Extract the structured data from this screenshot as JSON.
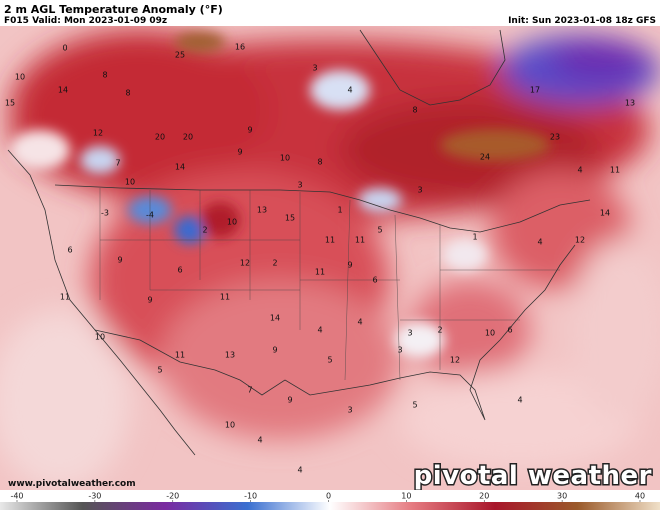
{
  "header": {
    "title": "2 m AGL Temperature Anomaly (°F)",
    "valid": "F015 Valid: Mon 2023-01-09 09z",
    "init": "Init: Sun 2023-01-08 18z GFS"
  },
  "footer": {
    "website": "www.pivotalweather.com",
    "logo": "pivotal weather"
  },
  "colorbar": {
    "range": [
      -40,
      40
    ],
    "ticks": [
      -40,
      -30,
      -20,
      -10,
      0,
      10,
      20,
      30,
      40
    ]
  },
  "map_labels": [
    0,
    10,
    14,
    8,
    8,
    16,
    25,
    3,
    4,
    8,
    17,
    13,
    23,
    24,
    15,
    12,
    20,
    20,
    9,
    7,
    10,
    14,
    9,
    10,
    8,
    3,
    1,
    3,
    -3,
    -4,
    2,
    10,
    13,
    15,
    11,
    11,
    5,
    6,
    9,
    6,
    12,
    2,
    11,
    9,
    6,
    1,
    4,
    12,
    14,
    11,
    9,
    11,
    14,
    4,
    4,
    3,
    2,
    10,
    6,
    10,
    11,
    13,
    9,
    5,
    3,
    12,
    5,
    7,
    9,
    3,
    5,
    4,
    10,
    4,
    4,
    4,
    11
  ]
}
